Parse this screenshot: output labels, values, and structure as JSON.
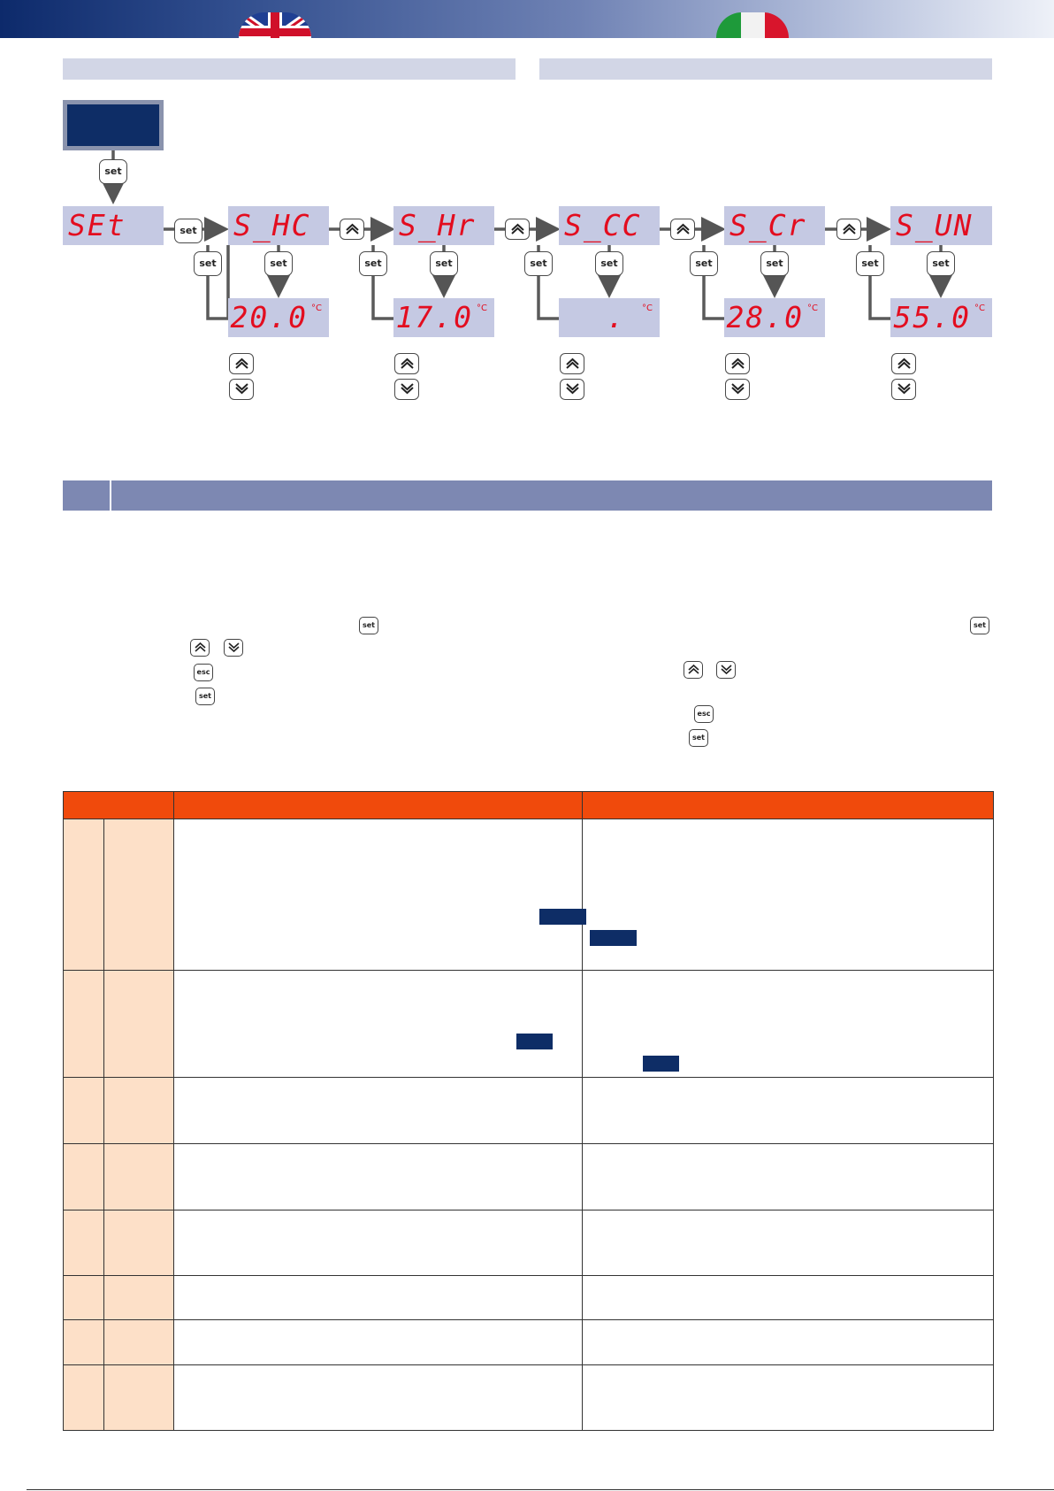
{
  "flow": {
    "root_display": "SEt",
    "parameters": [
      {
        "code": "S_HC",
        "value": "20.0",
        "unit": "°C"
      },
      {
        "code": "S_Hr",
        "value": "17.0",
        "unit": "°C"
      },
      {
        "code": "S_CC",
        "value": ".",
        "unit": "°C"
      },
      {
        "code": "S_Cr",
        "value": "28.0",
        "unit": "°C"
      },
      {
        "code": "S_UN",
        "value": "55.0",
        "unit": "°C"
      }
    ],
    "key_set": "set",
    "key_esc": "esc"
  },
  "icons": {
    "up": "up-chevron-icon",
    "down": "down-chevron-icon",
    "flag_left": "uk-flag-icon",
    "flag_right": "italy-flag-icon"
  },
  "colors": {
    "accent_orange": "#f04a0c",
    "table_cell": "#fde0c8",
    "navy": "#0e2d66",
    "lcd": "#c5c9e3",
    "segment_red": "#e30d1f",
    "section_bar": "#7d88b2"
  },
  "table": {
    "row_count": 8
  }
}
